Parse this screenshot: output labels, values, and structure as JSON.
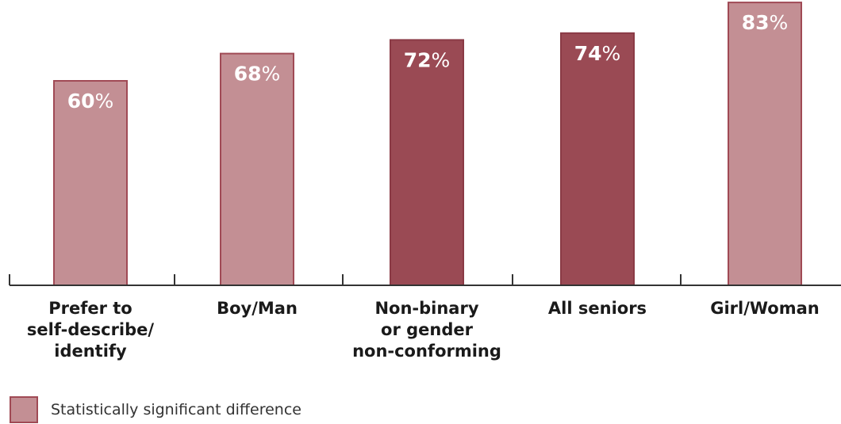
{
  "chart_data": {
    "type": "bar",
    "categories": [
      [
        "Prefer to",
        "self-describe/",
        "identify"
      ],
      [
        "Boy/Man"
      ],
      [
        "Non-binary",
        "or gender",
        "non-conforming"
      ],
      [
        "All seniors"
      ],
      [
        "Girl/Woman"
      ]
    ],
    "values": [
      60,
      68,
      72,
      74,
      83
    ],
    "value_labels": [
      "60",
      "68",
      "72",
      "74",
      "83"
    ],
    "value_suffix": "%",
    "significant": [
      true,
      true,
      false,
      false,
      true
    ],
    "ylim": [
      0,
      100
    ],
    "grid": false,
    "title": "",
    "xlabel": "",
    "ylabel": ""
  },
  "colors": {
    "significant_fill": "#c38f94",
    "significant_stroke": "#a04a55",
    "baseline_fill": "#9a4a54",
    "baseline_stroke": "#8a3a45",
    "axis": "#333333"
  },
  "legend": {
    "label": "Statistically significant difference",
    "placement": "bottom-left"
  }
}
